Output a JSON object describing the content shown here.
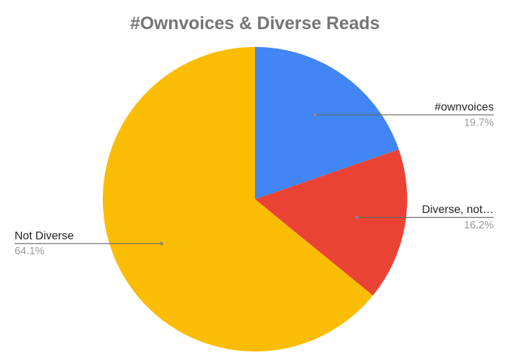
{
  "chart_data": {
    "type": "pie",
    "title": "#Ownvoices & Diverse Reads",
    "categories": [
      "#ownvoices",
      "Diverse, not…",
      "Not Diverse"
    ],
    "values": [
      19.7,
      16.2,
      64.1
    ],
    "value_labels": [
      "19.7%",
      "16.2%",
      "64.1%"
    ],
    "colors": [
      "#4285f4",
      "#ea4335",
      "#fbbc04"
    ]
  }
}
